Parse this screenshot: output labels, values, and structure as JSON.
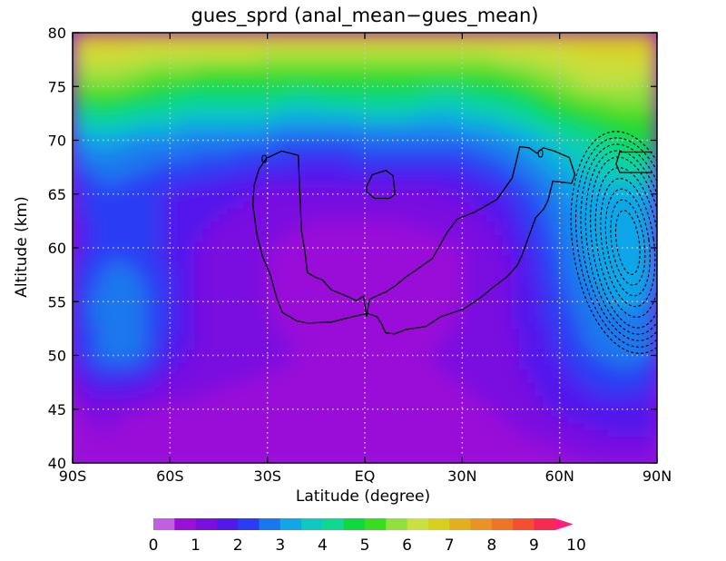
{
  "chart_data": {
    "type": "heatmap",
    "title": "gues_sprd (anal_mean−gues_mean)",
    "xlabel": "Latitude (degree)",
    "ylabel": "Altitude (km)",
    "xlim": [
      -90,
      90
    ],
    "ylim": [
      40,
      80
    ],
    "x_ticks": [
      {
        "value": -90,
        "label": "90S"
      },
      {
        "value": -60,
        "label": "60S"
      },
      {
        "value": -30,
        "label": "30S"
      },
      {
        "value": 0,
        "label": "EQ"
      },
      {
        "value": 30,
        "label": "30N"
      },
      {
        "value": 60,
        "label": "60N"
      },
      {
        "value": 90,
        "label": "90N"
      }
    ],
    "y_ticks": [
      {
        "value": 40,
        "label": "40"
      },
      {
        "value": 45,
        "label": "45"
      },
      {
        "value": 50,
        "label": "50"
      },
      {
        "value": 55,
        "label": "55"
      },
      {
        "value": 60,
        "label": "60"
      },
      {
        "value": 65,
        "label": "65"
      },
      {
        "value": 70,
        "label": "70"
      },
      {
        "value": 75,
        "label": "75"
      },
      {
        "value": 80,
        "label": "80"
      }
    ],
    "grid": true,
    "shading_levels": [
      0,
      0.5,
      1,
      1.5,
      2,
      2.5,
      3,
      3.5,
      4,
      4.5,
      5,
      5.5,
      6,
      6.5,
      7,
      7.5,
      8,
      8.5,
      9,
      9.5,
      10
    ],
    "colorbar": {
      "labels": [
        "0",
        "1",
        "2",
        "3",
        "4",
        "5",
        "6",
        "7",
        "8",
        "9",
        "10"
      ],
      "colors": [
        "#c060e0",
        "#9a10d8",
        "#7a10e0",
        "#5218ec",
        "#2a3cf4",
        "#1a78ee",
        "#10a6e8",
        "#10c8c0",
        "#10d890",
        "#10d840",
        "#38dc20",
        "#90e040",
        "#c8e040",
        "#d8d020",
        "#e0b020",
        "#e89228",
        "#ee7428",
        "#f45030",
        "#f82a50"
      ]
    },
    "shading_field": {
      "x": [
        -90,
        -80,
        -70,
        -60,
        -50,
        -40,
        -30,
        -20,
        -10,
        0,
        10,
        20,
        30,
        40,
        50,
        60,
        70,
        80,
        90
      ],
      "y": [
        40,
        45,
        50,
        55,
        60,
        65,
        70,
        75,
        80
      ],
      "values": [
        [
          0.6,
          0.7,
          0.6,
          0.7,
          0.7,
          0.6,
          0.6,
          0.6,
          0.6,
          0.6,
          0.6,
          0.6,
          0.6,
          0.6,
          0.7,
          0.8,
          1.0,
          1.2,
          1.3
        ],
        [
          1.0,
          1.2,
          1.0,
          0.9,
          0.9,
          0.8,
          0.8,
          0.8,
          0.7,
          0.7,
          0.7,
          0.8,
          0.9,
          1.0,
          1.3,
          1.6,
          1.8,
          1.8,
          1.7
        ],
        [
          1.9,
          2.7,
          2.6,
          1.8,
          1.3,
          1.2,
          1.1,
          1.0,
          0.9,
          0.9,
          0.9,
          1.0,
          1.1,
          1.3,
          1.6,
          2.0,
          2.5,
          2.7,
          2.5
        ],
        [
          2.2,
          2.8,
          2.7,
          2.1,
          1.4,
          1.2,
          1.0,
          0.8,
          0.6,
          0.6,
          0.7,
          0.8,
          1.0,
          1.2,
          1.7,
          2.3,
          2.9,
          3.1,
          2.9
        ],
        [
          1.7,
          2.4,
          2.4,
          1.8,
          1.4,
          1.2,
          1.0,
          0.8,
          0.7,
          0.7,
          0.7,
          0.8,
          1.0,
          1.3,
          1.9,
          2.6,
          3.2,
          3.5,
          3.2
        ],
        [
          1.8,
          2.4,
          2.2,
          1.9,
          1.7,
          1.6,
          1.4,
          1.3,
          1.3,
          1.3,
          1.3,
          1.4,
          1.5,
          1.8,
          2.3,
          2.9,
          3.3,
          3.4,
          3.2
        ],
        [
          3.0,
          3.2,
          3.0,
          2.9,
          2.8,
          2.7,
          2.6,
          2.5,
          2.5,
          2.6,
          2.6,
          2.6,
          2.6,
          2.9,
          3.3,
          3.8,
          4.2,
          4.6,
          4.9
        ],
        [
          5.4,
          5.6,
          5.3,
          4.9,
          4.8,
          4.8,
          4.7,
          4.6,
          4.7,
          4.7,
          4.7,
          4.6,
          4.6,
          4.7,
          5.1,
          5.6,
          6.0,
          6.0,
          5.8
        ],
        [
          6.9,
          7.0,
          7.0,
          7.0,
          7.0,
          7.0,
          7.0,
          7.0,
          7.0,
          7.0,
          7.0,
          7.0,
          7.0,
          7.0,
          7.0,
          6.9,
          7.0,
          7.0,
          7.0
        ]
      ]
    },
    "contours": [
      {
        "label": "0",
        "style": "solid",
        "points": [
          [
            -30.4,
            68.3
          ],
          [
            -25.6,
            69.0
          ],
          [
            -20.5,
            68.6
          ],
          [
            -20.1,
            65.7
          ],
          [
            -19.5,
            61.6
          ],
          [
            -18.4,
            59.5
          ],
          [
            -17.7,
            57.7
          ],
          [
            -15.4,
            57.3
          ],
          [
            -13.0,
            57.0
          ],
          [
            -10.3,
            56.1
          ],
          [
            -6.3,
            55.6
          ],
          [
            -2.6,
            55.1
          ],
          [
            -0.4,
            55.5
          ],
          [
            0.6,
            53.6
          ],
          [
            1.4,
            55.2
          ],
          [
            3.4,
            55.5
          ],
          [
            6.5,
            55.9
          ],
          [
            9.5,
            56.5
          ],
          [
            12.7,
            57.3
          ],
          [
            16.1,
            58.0
          ],
          [
            20.8,
            59.0
          ],
          [
            25.5,
            61.5
          ],
          [
            28.6,
            62.7
          ],
          [
            33.7,
            63.3
          ],
          [
            40.7,
            64.5
          ],
          [
            45.4,
            66.5
          ],
          [
            46.7,
            68.1
          ],
          [
            47.7,
            69.4
          ],
          [
            50.6,
            69.3
          ],
          [
            53.0,
            68.8
          ],
          [
            55.0,
            69.3
          ],
          [
            58.3,
            69.0
          ],
          [
            63.0,
            68.4
          ],
          [
            64.7,
            66.8
          ],
          [
            63.7,
            66.0
          ],
          [
            60.4,
            66.1
          ],
          [
            57.9,
            66.2
          ],
          [
            56.4,
            64.4
          ],
          [
            55.1,
            63.6
          ],
          [
            52.6,
            62.8
          ],
          [
            50.2,
            60.8
          ],
          [
            48.4,
            59.3
          ],
          [
            47.0,
            58.4
          ],
          [
            43.8,
            57.3
          ],
          [
            40.2,
            56.5
          ],
          [
            35.8,
            55.4
          ],
          [
            30.4,
            54.3
          ],
          [
            23.4,
            53.6
          ],
          [
            18.9,
            52.7
          ],
          [
            12.6,
            52.4
          ],
          [
            9.2,
            52.0
          ],
          [
            6.4,
            52.1
          ],
          [
            5.2,
            52.9
          ],
          [
            3.7,
            53.6
          ],
          [
            0.8,
            53.9
          ],
          [
            -3.6,
            53.6
          ],
          [
            -10.2,
            53.1
          ],
          [
            -17.7,
            53.0
          ],
          [
            -20.9,
            53.2
          ],
          [
            -25.4,
            54.0
          ],
          [
            -27.1,
            55.3
          ],
          [
            -29.1,
            57.5
          ],
          [
            -31.5,
            59.2
          ],
          [
            -33.2,
            61.2
          ],
          [
            -34.5,
            64.0
          ],
          [
            -34.1,
            65.8
          ],
          [
            -32.6,
            67.3
          ],
          [
            -30.4,
            68.3
          ]
        ]
      },
      {
        "label": "",
        "style": "solid",
        "points": [
          [
            0.6,
            65.7
          ],
          [
            2.3,
            66.8
          ],
          [
            6.5,
            67.2
          ],
          [
            8.7,
            66.7
          ],
          [
            9.3,
            65.0
          ],
          [
            7.6,
            64.6
          ],
          [
            3.0,
            64.6
          ],
          [
            0.6,
            65.2
          ],
          [
            0.6,
            65.7
          ]
        ]
      },
      {
        "label": "",
        "style": "solid",
        "points": [
          [
            88.6,
            68.9
          ],
          [
            78.5,
            68.9
          ],
          [
            77.4,
            67.8
          ],
          [
            78.5,
            67.0
          ],
          [
            88.6,
            67.0
          ]
        ]
      }
    ],
    "negative_contours": {
      "style": "dashed",
      "center": [
        81,
        60.5
      ],
      "radii_lat": [
        3.5,
        5,
        6.5,
        8,
        9.5,
        11,
        12.5,
        14,
        15.5,
        17
      ],
      "radii_alt": [
        3,
        4,
        5,
        6,
        7,
        8,
        8.6,
        9.2,
        9.8,
        10.4
      ]
    }
  }
}
